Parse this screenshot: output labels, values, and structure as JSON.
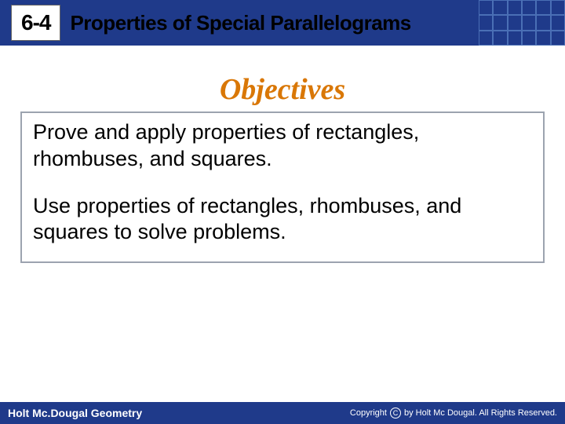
{
  "header": {
    "lesson_number": "6-4",
    "title": "Properties of Special Parallelograms",
    "bar_color": "#1f3a8a",
    "badge_bg": "#ffffff",
    "badge_text_color": "#000000",
    "title_color": "#000000",
    "grid_line_color": "#4a6fb5"
  },
  "objectives": {
    "heading": "Objectives",
    "heading_color": "#d97706",
    "heading_fontsize": 38,
    "items": [
      "Prove and apply properties of rectangles, rhombuses, and squares.",
      "Use properties of rectangles, rhombuses, and squares to solve problems."
    ],
    "box_border_color": "#9ca3af",
    "text_color": "#000000",
    "text_fontsize": 27
  },
  "footer": {
    "left_text": "Holt Mc.Dougal Geometry",
    "right_text": "by Holt Mc Dougal. All Rights Reserved.",
    "copyright_label": "Copyright",
    "bar_color": "#1f3a8a",
    "text_color": "#ffffff"
  }
}
